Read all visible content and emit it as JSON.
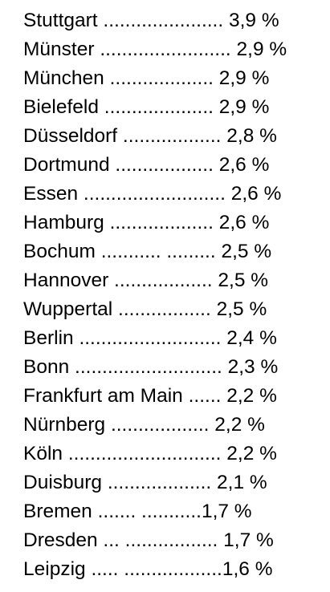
{
  "entries": [
    {
      "city": "Stuttgart",
      "dots": " ......................",
      "value": " 3,9 %"
    },
    {
      "city": "Münster",
      "dots": " ........................",
      "value": " 2,9 %"
    },
    {
      "city": "München",
      "dots": " ...................",
      "value": " 2,9 %"
    },
    {
      "city": "Bielefeld",
      "dots": " ....................",
      "value": " 2,9 %"
    },
    {
      "city": "Düsseldorf",
      "dots": " ..................",
      "value": " 2,8 %"
    },
    {
      "city": "Dortmund",
      "dots": " ..................",
      "value": " 2,6 %"
    },
    {
      "city": "Essen",
      "dots": " ..........................",
      "value": " 2,6 %"
    },
    {
      "city": "Hamburg",
      "dots": " ...................",
      "value": " 2,6 %"
    },
    {
      "city": "Bochum",
      "dots": " ........... .........",
      "value": " 2,5 %"
    },
    {
      "city": "Hannover",
      "dots": " ..................",
      "value": " 2,5 %"
    },
    {
      "city": "Wuppertal",
      "dots": " .................",
      "value": " 2,5 %"
    },
    {
      "city": "Berlin",
      "dots": " ..........................",
      "value": " 2,4 %"
    },
    {
      "city": "Bonn",
      "dots": " ...........................",
      "value": " 2,3 %"
    },
    {
      "city": "Frankfurt am Main",
      "dots": " ......",
      "value": " 2,2 %"
    },
    {
      "city": "Nürnberg",
      "dots": " ..................",
      "value": " 2,2 %"
    },
    {
      "city": "Köln",
      "dots": " ............................",
      "value": " 2,2 %"
    },
    {
      "city": "Duisburg",
      "dots": " ...................",
      "value": " 2,1 %"
    },
    {
      "city": "Bremen",
      "dots": " ....... ...........",
      "value": "1,7 %"
    },
    {
      "city": "Dresden",
      "dots": " ... .................",
      "value": " 1,7 %"
    },
    {
      "city": "Leipzig",
      "dots": " ..... ..................",
      "value": "1,6 %"
    }
  ]
}
